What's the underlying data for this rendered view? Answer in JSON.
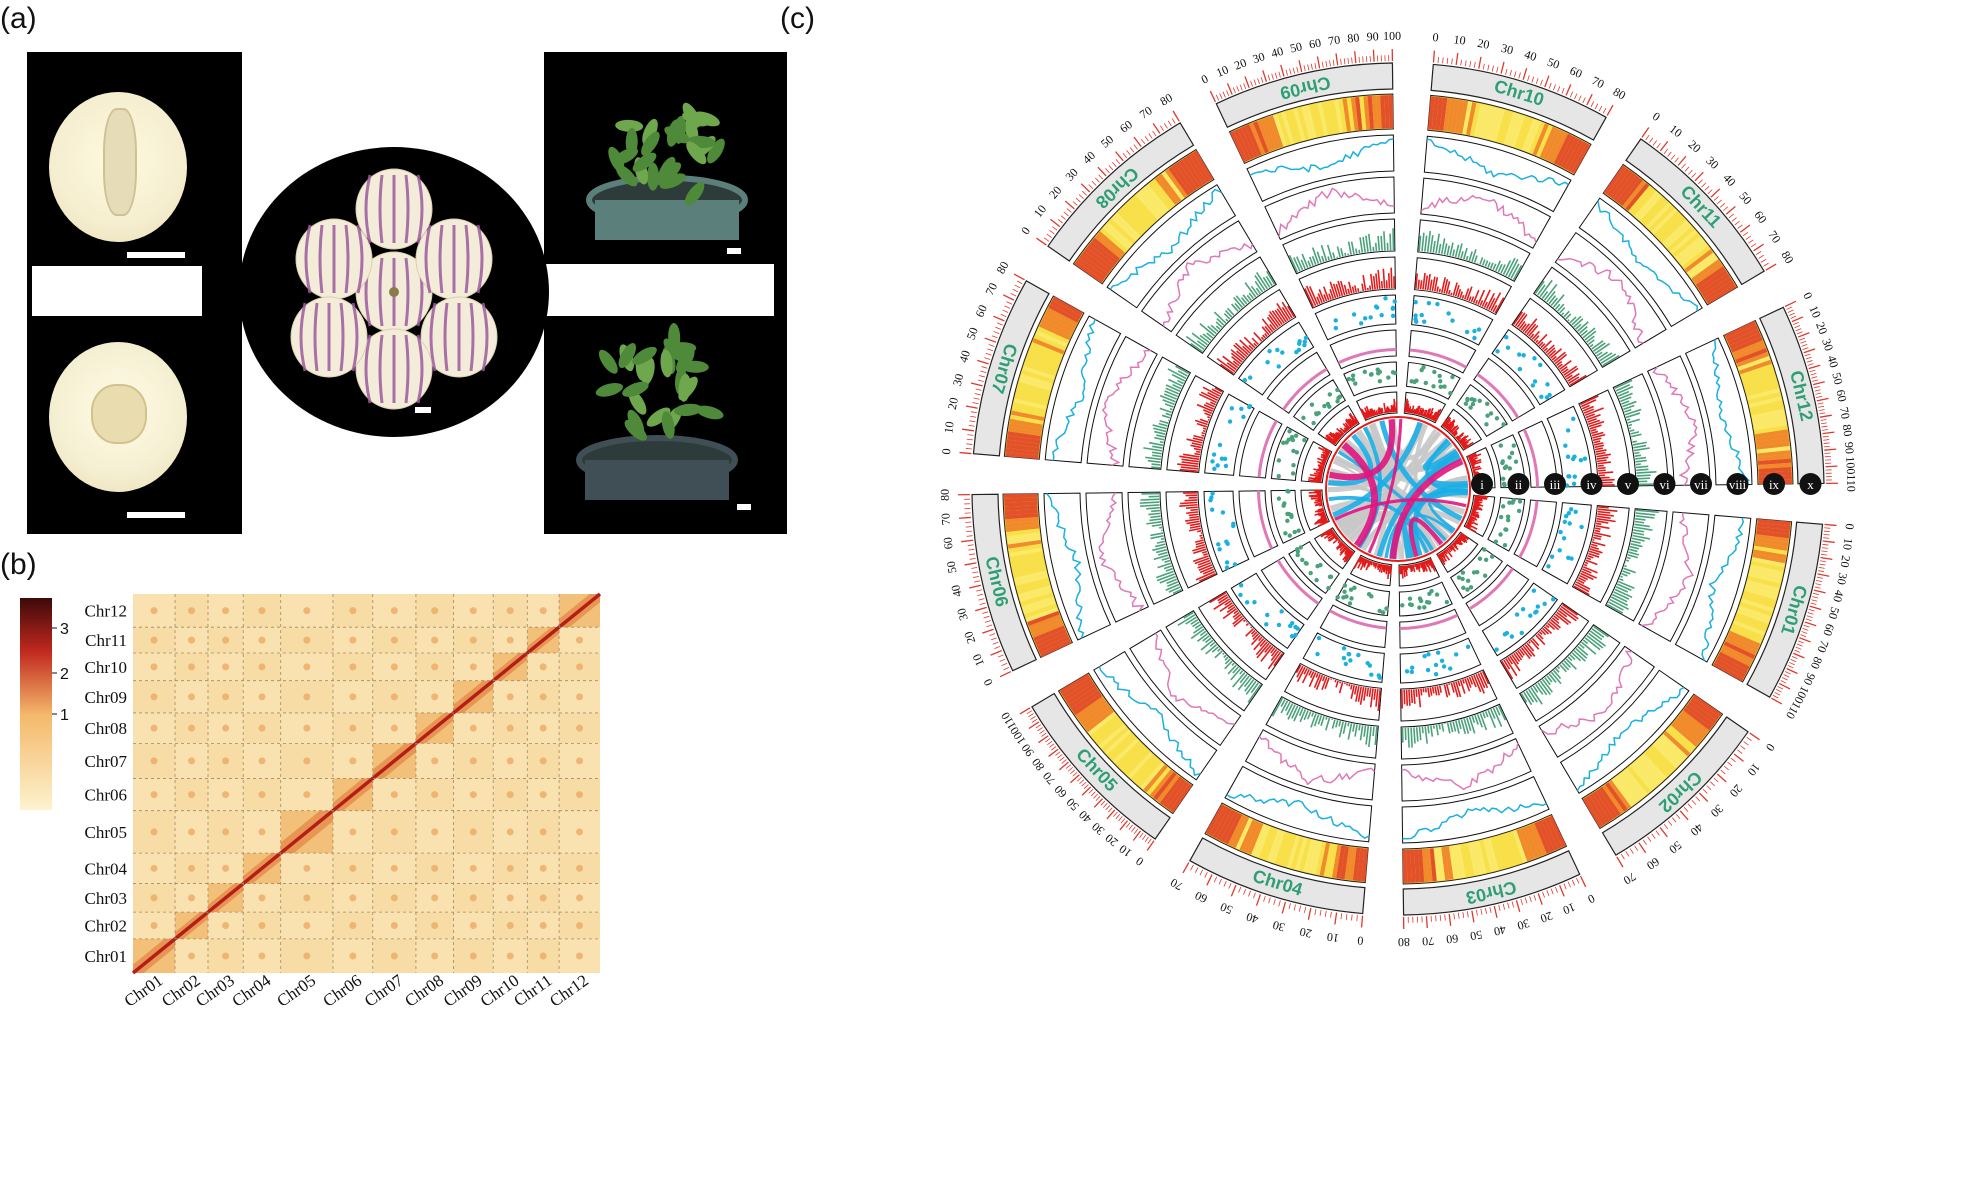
{
  "panels": {
    "a": {
      "label": "(a)"
    },
    "b": {
      "label": "(b)"
    },
    "c": {
      "label": "(c)"
    }
  },
  "heatmap": {
    "colorbar_ticks": [
      "3",
      "2",
      "1"
    ],
    "chromosomes": [
      "Chr01",
      "Chr02",
      "Chr03",
      "Chr04",
      "Chr05",
      "Chr06",
      "Chr07",
      "Chr08",
      "Chr09",
      "Chr10",
      "Chr11",
      "Chr12"
    ],
    "colors": {
      "low": "#fdf3cf",
      "mid": "#f4b86a",
      "high": "#c0281e",
      "max": "#3d0a0a"
    }
  },
  "circos": {
    "chromosomes": [
      {
        "name": "Chr01",
        "ticks": [
          "0",
          "10",
          "20",
          "30",
          "40",
          "50",
          "60",
          "70",
          "80",
          "90",
          "100",
          "110"
        ]
      },
      {
        "name": "Chr02",
        "ticks": [
          "0",
          "10",
          "20",
          "30",
          "40",
          "50",
          "60",
          "70"
        ]
      },
      {
        "name": "Chr03",
        "ticks": [
          "0",
          "10",
          "20",
          "30",
          "40",
          "50",
          "60",
          "70",
          "80"
        ]
      },
      {
        "name": "Chr04",
        "ticks": [
          "0",
          "10",
          "20",
          "30",
          "40",
          "50",
          "60",
          "70"
        ]
      },
      {
        "name": "Chr05",
        "ticks": [
          "0",
          "10",
          "20",
          "30",
          "40",
          "50",
          "60",
          "70",
          "80",
          "90",
          "100",
          "110"
        ]
      },
      {
        "name": "Chr06",
        "ticks": [
          "0",
          "10",
          "20",
          "30",
          "40",
          "50",
          "60",
          "70",
          "80"
        ]
      },
      {
        "name": "Chr07",
        "ticks": [
          "0",
          "10",
          "20",
          "30",
          "40",
          "50",
          "60",
          "70",
          "80"
        ]
      },
      {
        "name": "Chr08",
        "ticks": [
          "0",
          "10",
          "20",
          "30",
          "40",
          "50",
          "60",
          "70",
          "80"
        ]
      },
      {
        "name": "Chr09",
        "ticks": [
          "0",
          "10",
          "20",
          "30",
          "40",
          "50",
          "60",
          "70",
          "80",
          "90",
          "100"
        ]
      },
      {
        "name": "Chr10",
        "ticks": [
          "0",
          "10",
          "20",
          "30",
          "40",
          "50",
          "60",
          "70",
          "80"
        ]
      },
      {
        "name": "Chr11",
        "ticks": [
          "0",
          "10",
          "20",
          "30",
          "40",
          "50",
          "60",
          "70",
          "80"
        ]
      },
      {
        "name": "Chr12",
        "ticks": [
          "0",
          "10",
          "20",
          "30",
          "40",
          "50",
          "60",
          "70",
          "80",
          "90",
          "100",
          "110"
        ]
      }
    ],
    "track_labels": [
      "i",
      "ii",
      "iii",
      "iv",
      "v",
      "vi",
      "vii",
      "viii",
      "ix",
      "x"
    ],
    "colors": {
      "label": "#2e9e74",
      "cyan": "#1ab0e0",
      "pink": "#e078b8",
      "green": "#4aa27a",
      "red": "#e21b1b",
      "gray": "#c8c8c8",
      "magenta": "#e0157f",
      "link_blue": "#1aaee6",
      "tick": "#e0382c"
    }
  }
}
